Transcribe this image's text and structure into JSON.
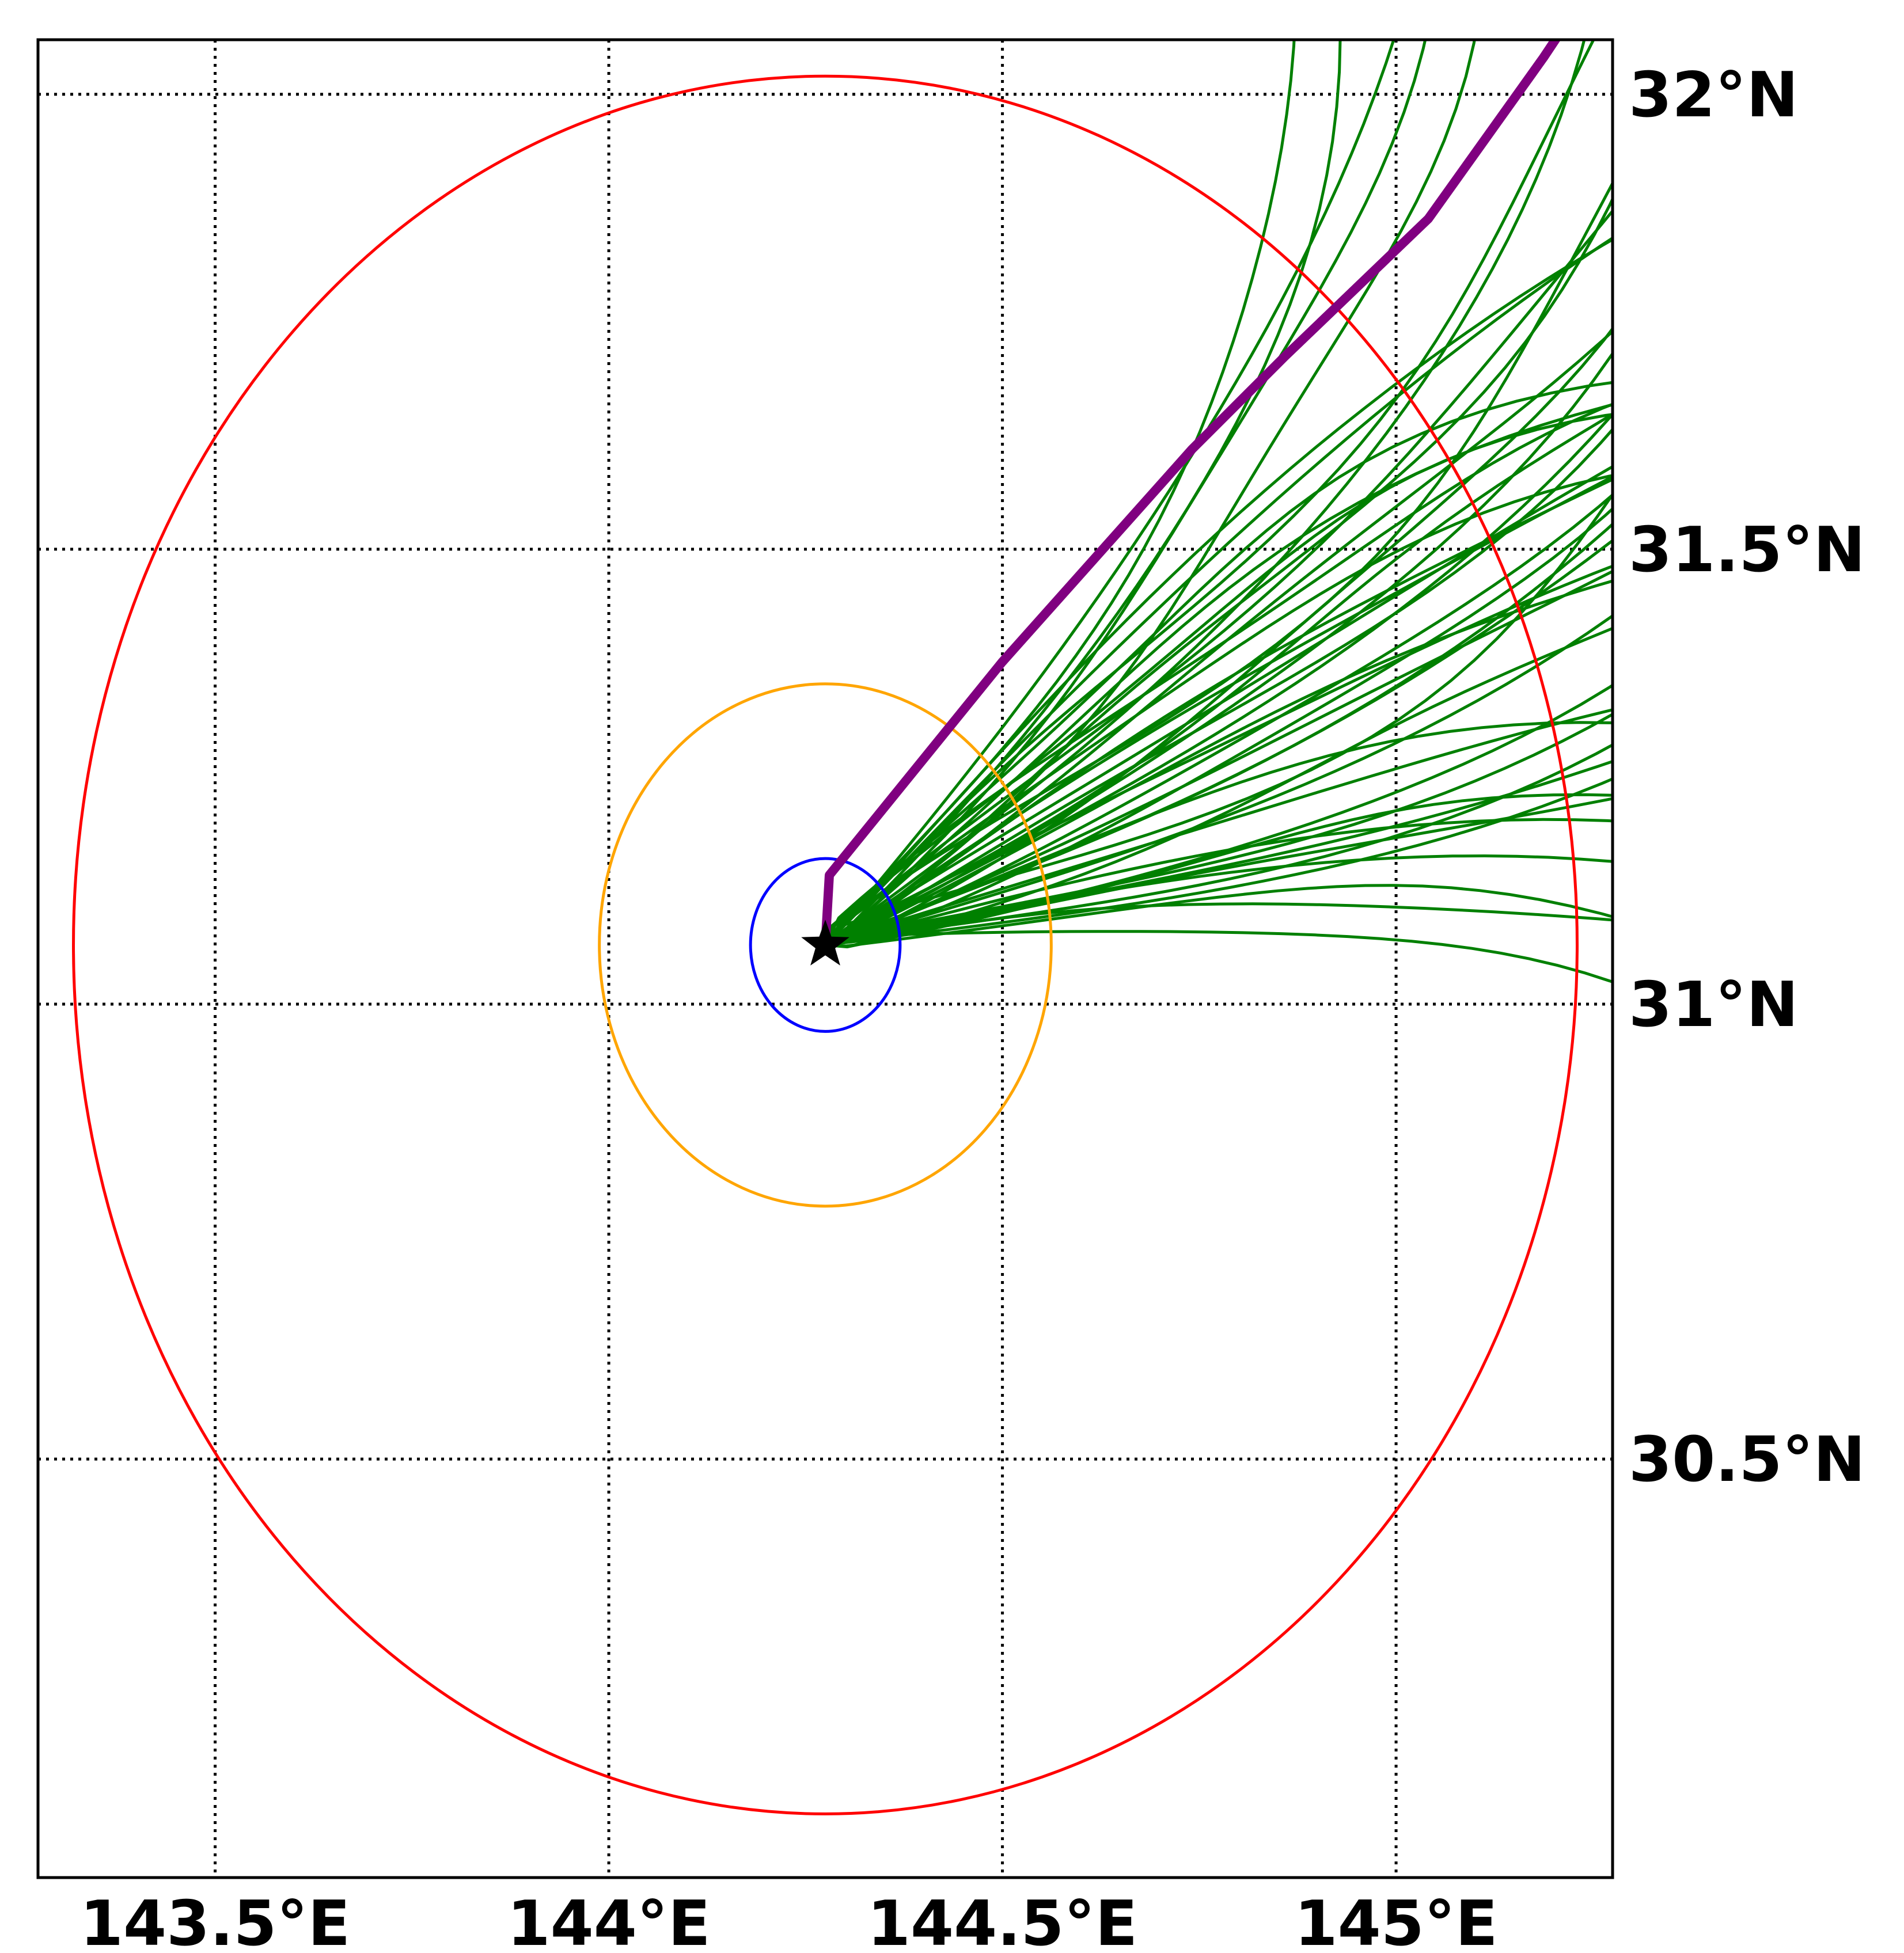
{
  "map": {
    "lon_range": [
      143.275,
      145.275
    ],
    "lat_range": [
      30.04,
      32.06
    ],
    "meridians": [
      143.5,
      144.0,
      144.5,
      145.0
    ],
    "parallels": [
      30.5,
      31.0,
      31.5,
      32.0
    ],
    "lon_labels": [
      "143.5°E",
      "144°E",
      "144.5°E",
      "145°E"
    ],
    "lat_labels": [
      "30.5°N",
      "31°N",
      "31.5°N",
      "32°N"
    ],
    "grid": "dotted",
    "storm_center": {
      "lon": 144.275,
      "lat": 31.065,
      "marker": "star-icon"
    },
    "range_rings": [
      {
        "radius_deg": 0.095,
        "color": "#0000ff"
      },
      {
        "radius_deg": 0.287,
        "color": "#ffa500"
      },
      {
        "radius_deg": 0.955,
        "color": "#ff0000"
      }
    ],
    "ensemble_color": "#008000",
    "mean_track_color": "#800080"
  }
}
